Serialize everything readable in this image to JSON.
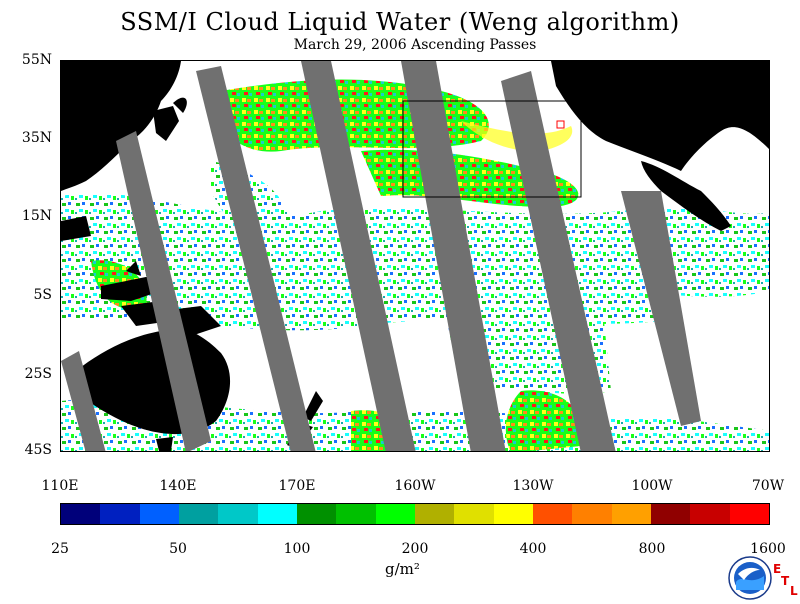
{
  "title": "SSM/I Cloud Liquid Water (Weng algorithm)",
  "subtitle": "March 29, 2006  Ascending Passes",
  "map": {
    "lat_labels": [
      "55N",
      "35N",
      "15N",
      "5S",
      "25S",
      "45S"
    ],
    "lon_labels": [
      "110E",
      "140E",
      "170E",
      "160W",
      "130W",
      "100W",
      "70W"
    ]
  },
  "colorbar": {
    "colors": [
      "#00007a",
      "#0020c0",
      "#0060ff",
      "#00a0a0",
      "#00c8c8",
      "#00ffff",
      "#009000",
      "#00c000",
      "#00ff00",
      "#b0b000",
      "#e0e000",
      "#ffff00",
      "#ff5000",
      "#ff8000",
      "#ffa000",
      "#900000",
      "#c80000",
      "#ff0000"
    ],
    "tick_labels": [
      "25",
      "50",
      "100",
      "200",
      "400",
      "800",
      "1600"
    ],
    "units": "g/m²"
  },
  "logo": {
    "name": "NOAA",
    "letters": [
      "E",
      "T",
      "L"
    ]
  }
}
